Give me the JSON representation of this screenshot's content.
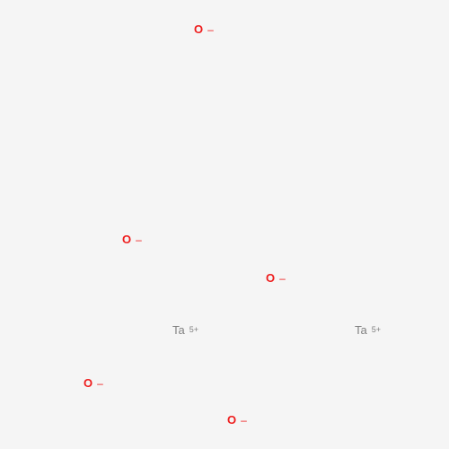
{
  "atoms": [
    {
      "symbol": "O",
      "charge": "–",
      "color": "#ee1c1c"
    },
    {
      "symbol": "O",
      "charge": "–",
      "color": "#ee1c1c"
    },
    {
      "symbol": "O",
      "charge": "–",
      "color": "#ee1c1c"
    },
    {
      "symbol": "Ta",
      "charge": "5+",
      "color": "#808080"
    },
    {
      "symbol": "Ta",
      "charge": "5+",
      "color": "#808080"
    },
    {
      "symbol": "O",
      "charge": "–",
      "color": "#ee1c1c"
    },
    {
      "symbol": "O",
      "charge": "–",
      "color": "#ee1c1c"
    }
  ]
}
